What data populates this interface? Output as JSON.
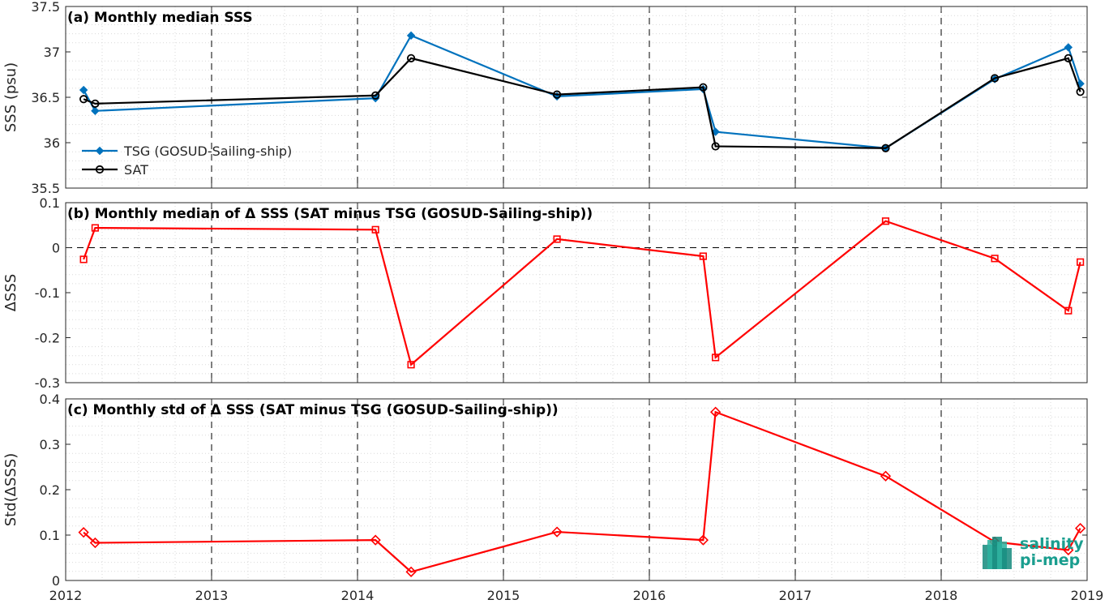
{
  "chart_data": [
    {
      "type": "line",
      "title": "(a) Monthly median SSS",
      "xlabel": "",
      "ylabel": "SSS (psu)",
      "xlim": [
        "2012-01-01",
        "2019-01-01"
      ],
      "ylim": [
        35.5,
        37.5
      ],
      "yticks": [
        35.5,
        36,
        36.5,
        37,
        37.5
      ],
      "ytick_labels": [
        "35.5",
        "36",
        "36.5",
        "37",
        "37.5"
      ],
      "grid": true,
      "legend_position": "bottom-left",
      "series": [
        {
          "name": "TSG (GOSUD-Sailing-ship)",
          "color": "#0072BD",
          "marker": "diamond",
          "x": [
            "2012-02-15",
            "2012-03-15",
            "2014-02-15",
            "2014-05-15",
            "2015-05-15",
            "2016-05-15",
            "2016-06-15",
            "2017-08-15",
            "2018-05-15",
            "2018-11-15",
            "2018-12-15"
          ],
          "y": [
            36.58,
            36.35,
            36.49,
            37.18,
            36.51,
            36.59,
            36.12,
            35.94,
            36.7,
            37.05,
            36.65
          ]
        },
        {
          "name": "SAT",
          "color": "#000000",
          "marker": "circle",
          "x": [
            "2012-02-15",
            "2012-03-15",
            "2014-02-15",
            "2014-05-15",
            "2015-05-15",
            "2016-05-15",
            "2016-06-15",
            "2017-08-15",
            "2018-05-15",
            "2018-11-15",
            "2018-12-15"
          ],
          "y": [
            36.48,
            36.43,
            36.52,
            36.93,
            36.53,
            36.61,
            35.96,
            35.94,
            36.71,
            36.93,
            36.56
          ]
        }
      ]
    },
    {
      "type": "line",
      "title": "(b) Monthly median of Δ SSS (SAT minus TSG (GOSUD-Sailing-ship))",
      "xlabel": "",
      "ylabel": "ΔSSS",
      "xlim": [
        "2012-01-01",
        "2019-01-01"
      ],
      "ylim": [
        -0.3,
        0.1
      ],
      "yticks": [
        -0.3,
        -0.2,
        -0.1,
        0,
        0.1
      ],
      "ytick_labels": [
        "-0.3",
        "-0.2",
        "-0.1",
        "0",
        "0.1"
      ],
      "grid": true,
      "zero_line": true,
      "series": [
        {
          "color": "#FF0000",
          "marker": "square",
          "x": [
            "2012-02-15",
            "2012-03-15",
            "2014-02-15",
            "2014-05-15",
            "2015-05-15",
            "2016-05-15",
            "2016-06-15",
            "2017-08-15",
            "2018-05-15",
            "2018-11-15",
            "2018-12-15"
          ],
          "y": [
            -0.026,
            0.044,
            0.04,
            -0.26,
            0.019,
            -0.019,
            -0.244,
            0.059,
            -0.024,
            -0.14,
            -0.032
          ]
        }
      ]
    },
    {
      "type": "line",
      "title": "(c) Monthly std of Δ SSS (SAT minus TSG (GOSUD-Sailing-ship))",
      "xlabel": "",
      "ylabel": "Std(ΔSSS)",
      "xlim": [
        "2012-01-01",
        "2019-01-01"
      ],
      "ylim": [
        0,
        0.4
      ],
      "yticks": [
        0,
        0.1,
        0.2,
        0.3,
        0.4
      ],
      "ytick_labels": [
        "0",
        "0.1",
        "0.2",
        "0.3",
        "0.4"
      ],
      "xticks": [
        2012,
        2013,
        2014,
        2015,
        2016,
        2017,
        2018,
        2019
      ],
      "xtick_labels": [
        "2012",
        "2013",
        "2014",
        "2015",
        "2016",
        "2017",
        "2018",
        "2019"
      ],
      "grid": true,
      "series": [
        {
          "color": "#FF0000",
          "marker": "diamond-open",
          "x": [
            "2012-02-15",
            "2012-03-15",
            "2014-02-15",
            "2014-05-15",
            "2015-05-15",
            "2016-05-15",
            "2016-06-15",
            "2017-08-15",
            "2018-05-15",
            "2018-11-15",
            "2018-12-15"
          ],
          "y": [
            0.106,
            0.083,
            0.089,
            0.019,
            0.107,
            0.089,
            0.371,
            0.23,
            0.085,
            0.067,
            0.115
          ]
        }
      ]
    }
  ],
  "logo": {
    "line1": "salinity",
    "line2": "pi-mep",
    "color": "#1a9e8f"
  },
  "colors": {
    "grid": "#d9d9d9",
    "year_line": "#000000",
    "axis": "#262626"
  }
}
